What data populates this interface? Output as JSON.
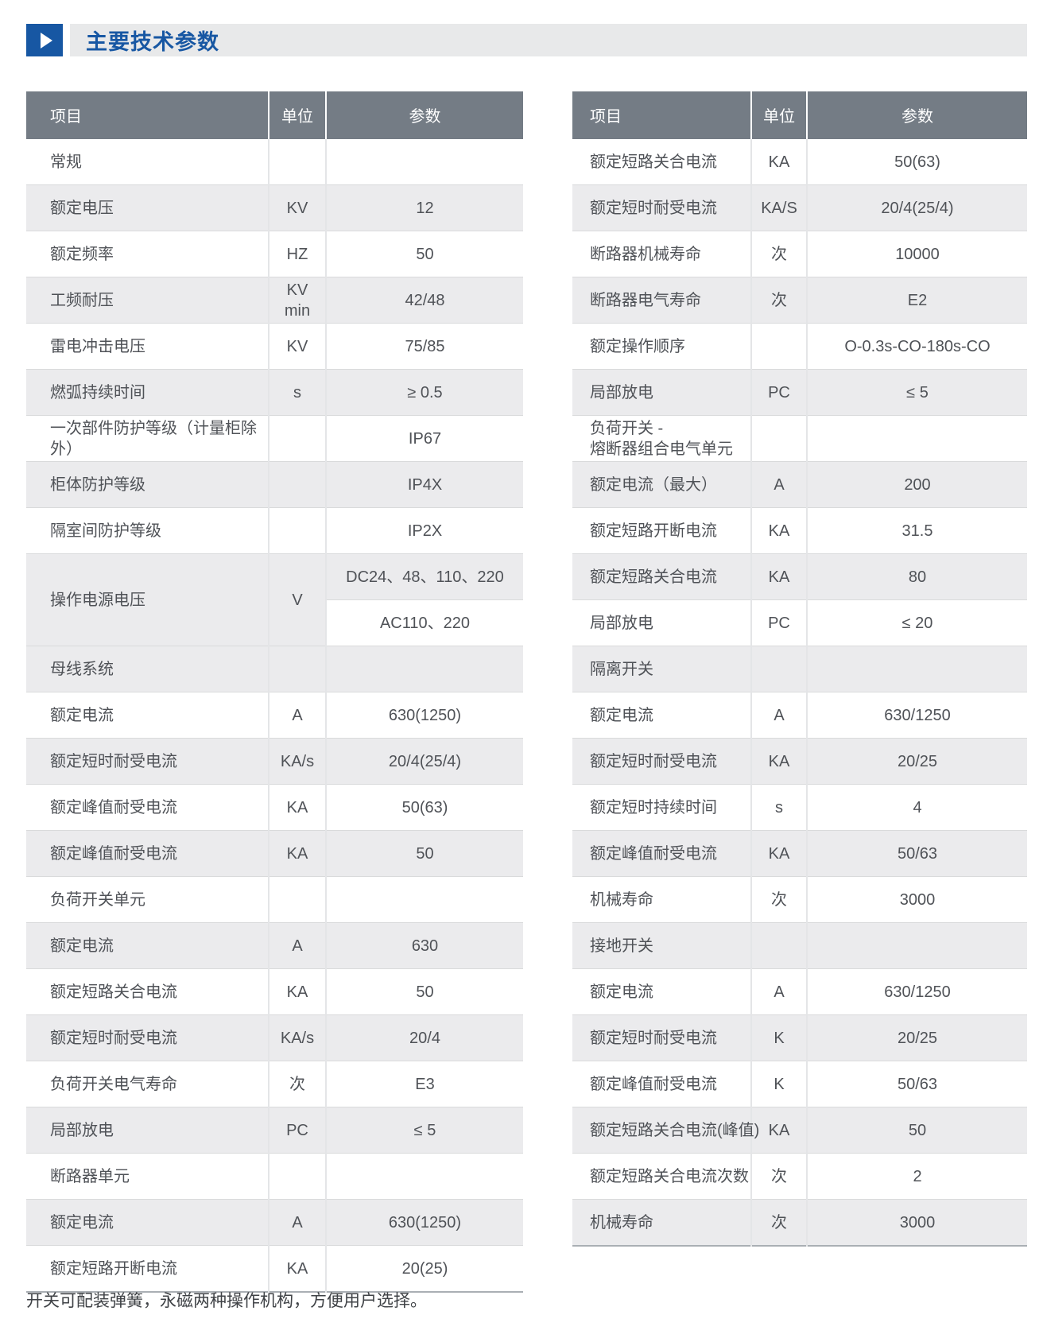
{
  "page": {
    "title": "主要技术参数",
    "footer_note": "开关可配装弹簧，永磁两种操作机构，方便用户选择。"
  },
  "colors": {
    "accent_blue": "#1757a3",
    "title_bar_bg": "#e8e9ea",
    "table_header_bg": "#747c85",
    "row_stripe_gray": "#ebebed",
    "row_stripe_white": "#ffffff",
    "table_bottom_border": "#aaafb4"
  },
  "tables": [
    {
      "id": "left",
      "headers": {
        "item": "项目",
        "unit": "单位",
        "param": "参数"
      },
      "rows": [
        {
          "item": "常规",
          "unit": "",
          "param": ""
        },
        {
          "item": "额定电压",
          "unit": "KV",
          "param": "12"
        },
        {
          "item": "额定频率",
          "unit": "HZ",
          "param": "50"
        },
        {
          "item": "工频耐压",
          "unit": "KV\nmin",
          "param": "42/48"
        },
        {
          "item": "雷电冲击电压",
          "unit": "KV",
          "param": "75/85"
        },
        {
          "item": "燃弧持续时间",
          "unit": "s",
          "param": "≥ 0.5"
        },
        {
          "item": "一次部件防护等级（计量柜除\n外）",
          "unit": "",
          "param": "IP67"
        },
        {
          "item": "柜体防护等级",
          "unit": "",
          "param": "IP4X"
        },
        {
          "item": "隔室间防护等级",
          "unit": "",
          "param": "IP2X"
        },
        {
          "item": "操作电源电压",
          "unit": "V",
          "params": [
            "DC24、48、110、220",
            "AC110、220"
          ]
        },
        {
          "item": "母线系统",
          "unit": "",
          "param": ""
        },
        {
          "item": "额定电流",
          "unit": "A",
          "param": "630(1250)"
        },
        {
          "item": "额定短时耐受电流",
          "unit": "KA/s",
          "param": "20/4(25/4)"
        },
        {
          "item": "额定峰值耐受电流",
          "unit": "KA",
          "param": "50(63)"
        },
        {
          "item": "额定峰值耐受电流",
          "unit": "KA",
          "param": "50"
        },
        {
          "item": "负荷开关单元",
          "unit": "",
          "param": ""
        },
        {
          "item": "额定电流",
          "unit": "A",
          "param": "630"
        },
        {
          "item": "额定短路关合电流",
          "unit": "KA",
          "param": "50"
        },
        {
          "item": "额定短时耐受电流",
          "unit": "KA/s",
          "param": "20/4"
        },
        {
          "item": "负荷开关电气寿命",
          "unit": "次",
          "param": "E3"
        },
        {
          "item": "局部放电",
          "unit": "PC",
          "param": "≤ 5"
        },
        {
          "item": "断路器单元",
          "unit": "",
          "param": ""
        },
        {
          "item": "额定电流",
          "unit": "A",
          "param": "630(1250)"
        },
        {
          "item": "额定短路开断电流",
          "unit": "KA",
          "param": "20(25)"
        }
      ]
    },
    {
      "id": "right",
      "headers": {
        "item": "项目",
        "unit": "单位",
        "param": "参数"
      },
      "rows": [
        {
          "item": "额定短路关合电流",
          "unit": "KA",
          "param": "50(63)"
        },
        {
          "item": "额定短时耐受电流",
          "unit": "KA/S",
          "param": "20/4(25/4)"
        },
        {
          "item": "断路器机械寿命",
          "unit": "次",
          "param": "10000"
        },
        {
          "item": "断路器电气寿命",
          "unit": "次",
          "param": "E2"
        },
        {
          "item": "额定操作顺序",
          "unit": "",
          "param": "O-0.3s-CO-180s-CO"
        },
        {
          "item": "局部放电",
          "unit": "PC",
          "param": "≤ 5"
        },
        {
          "item": "负荷开关 -\n熔断器组合电气单元",
          "unit": "",
          "param": ""
        },
        {
          "item": "额定电流（最大）",
          "unit": "A",
          "param": "200"
        },
        {
          "item": "额定短路开断电流",
          "unit": "KA",
          "param": "31.5"
        },
        {
          "item": "额定短路关合电流",
          "unit": "KA",
          "param": "80"
        },
        {
          "item": "局部放电",
          "unit": "PC",
          "param": "≤ 20"
        },
        {
          "item": "隔离开关",
          "unit": "",
          "param": ""
        },
        {
          "item": "额定电流",
          "unit": "A",
          "param": "630/1250"
        },
        {
          "item": "额定短时耐受电流",
          "unit": "KA",
          "param": "20/25"
        },
        {
          "item": "额定短时持续时间",
          "unit": "s",
          "param": "4"
        },
        {
          "item": "额定峰值耐受电流",
          "unit": "KA",
          "param": "50/63"
        },
        {
          "item": "机械寿命",
          "unit": "次",
          "param": "3000"
        },
        {
          "item": "接地开关",
          "unit": "",
          "param": ""
        },
        {
          "item": "额定电流",
          "unit": "A",
          "param": "630/1250"
        },
        {
          "item": "额定短时耐受电流",
          "unit": "K",
          "param": "20/25"
        },
        {
          "item": "额定峰值耐受电流",
          "unit": "K",
          "param": "50/63"
        },
        {
          "item": "额定短路关合电流(峰值)",
          "unit": "KA",
          "param": "50"
        },
        {
          "item": "额定短路关合电流次数",
          "unit": "次",
          "param": "2"
        },
        {
          "item": "机械寿命",
          "unit": "次",
          "param": "3000"
        }
      ]
    }
  ]
}
